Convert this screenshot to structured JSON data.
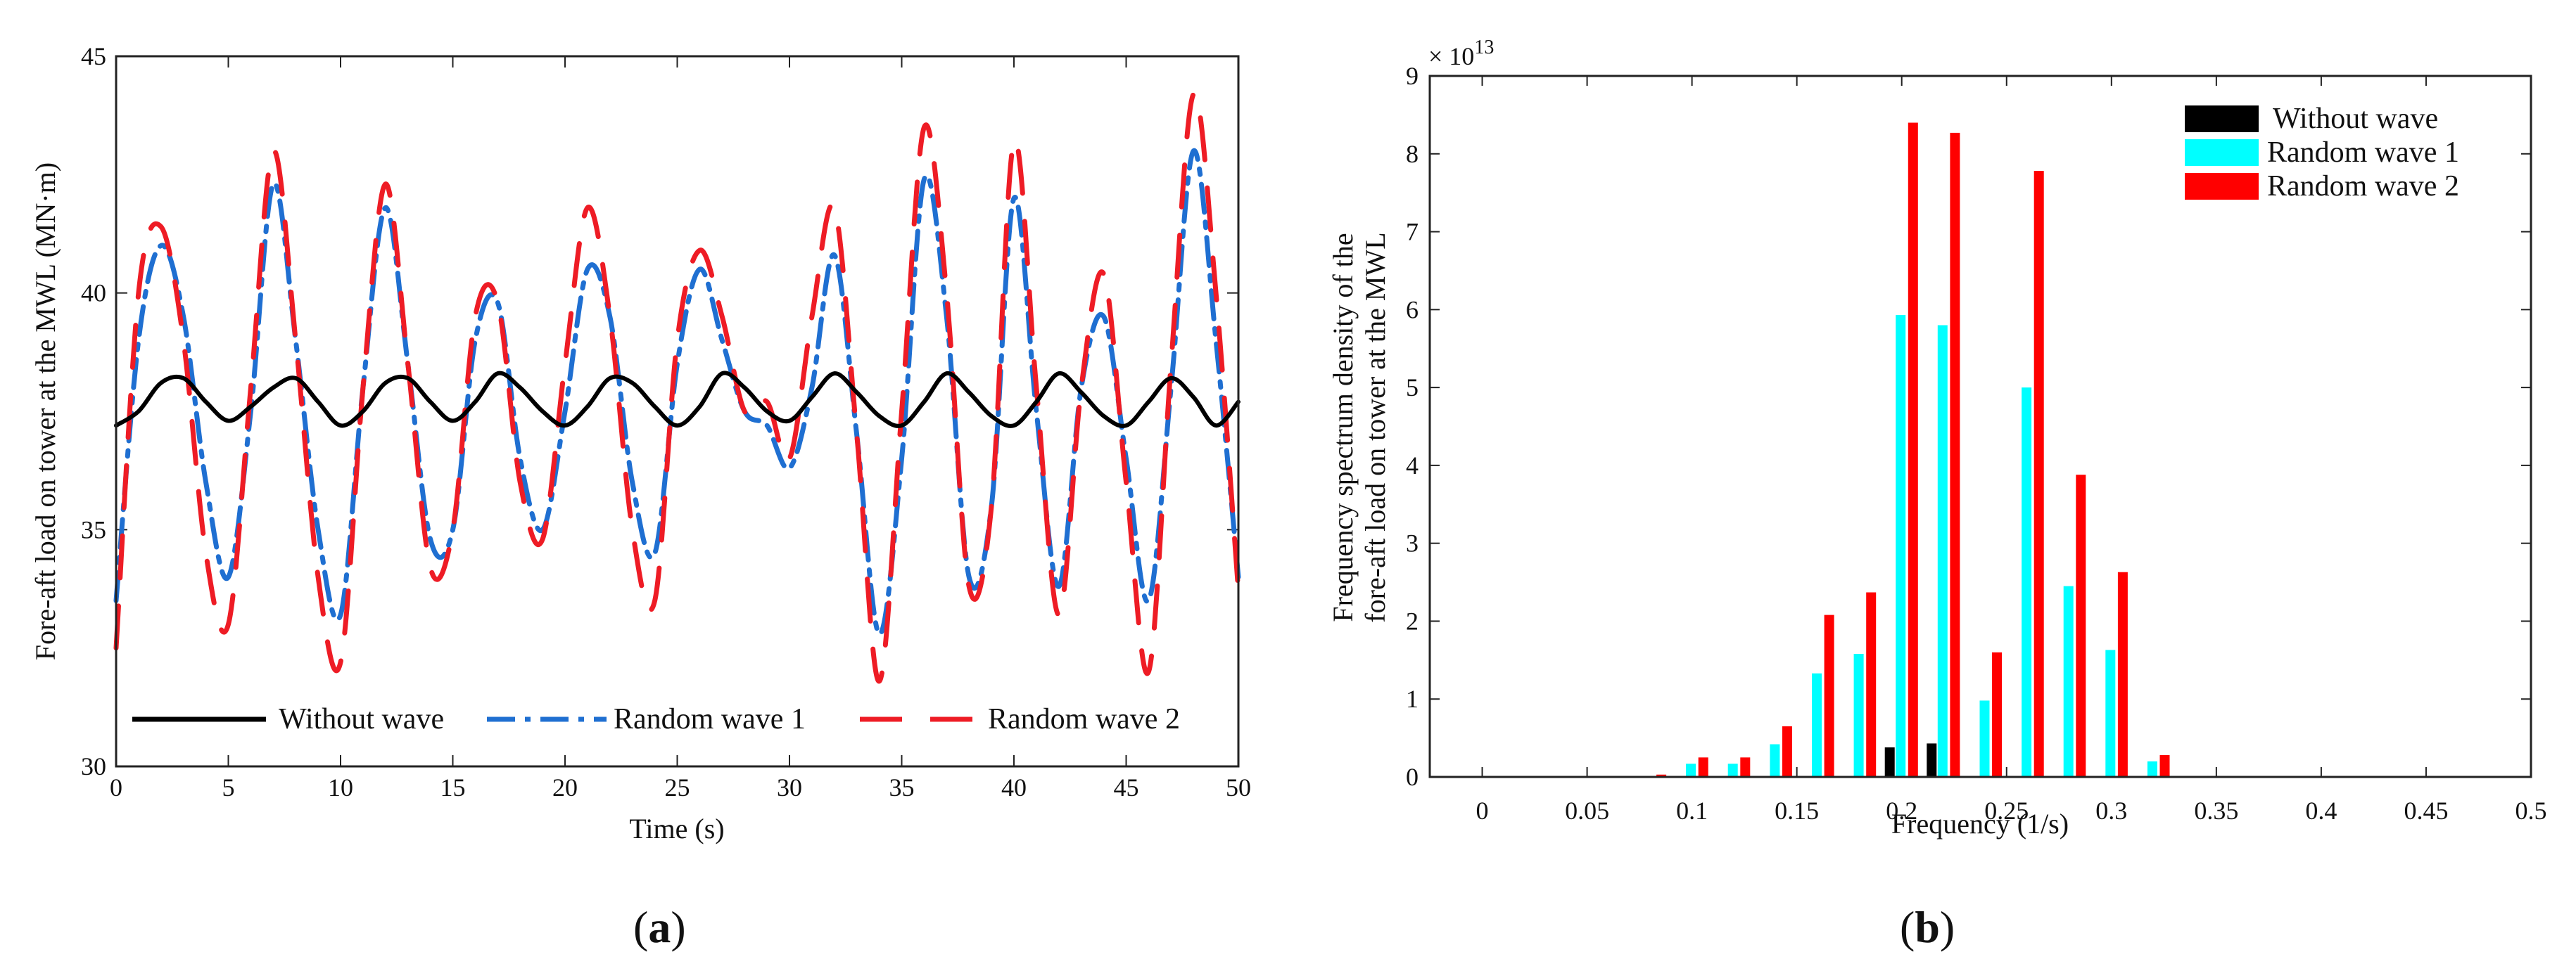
{
  "figure": {
    "panel_a_letter": "a",
    "panel_b_letter": "b"
  },
  "chart_data": [
    {
      "type": "line",
      "panel": "a",
      "title": "",
      "xlabel": "Time (s)",
      "ylabel": "Fore-aft load on tower at the MWL (MN·m)",
      "xlim": [
        0,
        50
      ],
      "ylim": [
        30,
        45
      ],
      "xticks": [
        0,
        5,
        10,
        15,
        20,
        25,
        30,
        35,
        40,
        45,
        50
      ],
      "yticks": [
        30,
        35,
        40,
        45
      ],
      "legend_position": "bottom",
      "series": [
        {
          "name": "Without wave",
          "color": "#000000",
          "style": "solid",
          "x": [
            0,
            1,
            2,
            3,
            4,
            5,
            6,
            7,
            8,
            9,
            10,
            11,
            12,
            13,
            14,
            15,
            16,
            17,
            18,
            19,
            20,
            21,
            22,
            23,
            24,
            25,
            26,
            27,
            28,
            29,
            30,
            31,
            32,
            33,
            34,
            35,
            36,
            37,
            38,
            39,
            40,
            41,
            42,
            43,
            44,
            45,
            46,
            47,
            48,
            49,
            50
          ],
          "y": [
            37.2,
            37.5,
            38.1,
            38.2,
            37.7,
            37.3,
            37.6,
            38.0,
            38.2,
            37.7,
            37.2,
            37.5,
            38.1,
            38.2,
            37.7,
            37.3,
            37.7,
            38.3,
            38.0,
            37.5,
            37.2,
            37.6,
            38.2,
            38.1,
            37.6,
            37.2,
            37.6,
            38.3,
            38.0,
            37.5,
            37.3,
            37.8,
            38.3,
            37.9,
            37.4,
            37.2,
            37.7,
            38.3,
            37.9,
            37.4,
            37.2,
            37.7,
            38.3,
            37.9,
            37.4,
            37.2,
            37.7,
            38.2,
            37.8,
            37.2,
            37.7
          ]
        },
        {
          "name": "Random wave 1",
          "color": "#1f6fd1",
          "style": "dashdot",
          "x": [
            0,
            1,
            2,
            3,
            4,
            5,
            6,
            7,
            8,
            9,
            10,
            11,
            12,
            13,
            14,
            15,
            16,
            17,
            18,
            19,
            20,
            21,
            22,
            23,
            24,
            25,
            26,
            27,
            28,
            29,
            30,
            31,
            32,
            33,
            34,
            35,
            36,
            37,
            38,
            39,
            40,
            41,
            42,
            43,
            44,
            45,
            46,
            47,
            48,
            49,
            50
          ],
          "y": [
            33.5,
            39.0,
            41.0,
            39.5,
            36.0,
            34.0,
            37.5,
            42.3,
            39.0,
            35.0,
            33.2,
            38.0,
            41.8,
            38.5,
            34.8,
            35.0,
            39.0,
            39.8,
            36.5,
            35.0,
            37.5,
            40.5,
            39.5,
            36.0,
            34.5,
            38.5,
            40.5,
            39.0,
            37.5,
            37.2,
            36.3,
            38.0,
            40.8,
            37.0,
            32.8,
            36.5,
            42.4,
            39.5,
            34.0,
            35.5,
            42.0,
            37.5,
            33.8,
            38.0,
            39.5,
            36.5,
            33.5,
            38.0,
            43.0,
            39.0,
            34.0
          ]
        },
        {
          "name": "Random wave 2",
          "color": "#ee1c25",
          "style": "dashed",
          "x": [
            0,
            1,
            2,
            3,
            4,
            5,
            6,
            7,
            8,
            9,
            10,
            11,
            12,
            13,
            14,
            15,
            16,
            17,
            18,
            19,
            20,
            21,
            22,
            23,
            24,
            25,
            26,
            27,
            28,
            29,
            30,
            31,
            32,
            33,
            34,
            35,
            36,
            37,
            38,
            39,
            40,
            41,
            42,
            43,
            44,
            45,
            46,
            47,
            48,
            49,
            50
          ],
          "y": [
            32.5,
            40.0,
            41.4,
            39.0,
            34.5,
            33.0,
            38.0,
            43.0,
            39.0,
            34.0,
            32.2,
            38.0,
            42.3,
            38.5,
            34.2,
            35.0,
            39.5,
            39.8,
            36.0,
            34.8,
            38.5,
            41.8,
            39.5,
            35.0,
            33.5,
            39.0,
            40.9,
            39.5,
            37.5,
            37.7,
            36.5,
            39.5,
            41.8,
            37.0,
            31.8,
            37.5,
            43.5,
            40.0,
            33.8,
            35.5,
            43.2,
            38.0,
            33.2,
            38.0,
            40.4,
            36.0,
            32.0,
            38.5,
            44.2,
            40.0,
            33.7
          ]
        }
      ]
    },
    {
      "type": "bar",
      "panel": "b",
      "title": "",
      "xlabel": "Frequency (1/s)",
      "ylabel_line1": "Frequency spectrum density of the",
      "ylabel_line2": "fore-aft load on tower at the MWL",
      "exponent_label": "× 10",
      "exponent_power": "13",
      "xlim": [
        -0.025,
        0.5
      ],
      "ylim": [
        0,
        9
      ],
      "xticks": [
        0,
        0.05,
        0.1,
        0.15,
        0.2,
        0.25,
        0.3,
        0.35,
        0.4,
        0.45,
        0.5
      ],
      "xtick_labels": [
        "0",
        "0.05",
        "0.1",
        "0.15",
        "0.2",
        "0.25",
        "0.3",
        "0.35",
        "0.4",
        "0.45",
        "0.5"
      ],
      "yticks": [
        0,
        1,
        2,
        3,
        4,
        5,
        6,
        7,
        8,
        9
      ],
      "legend_position": "top-right",
      "frequencies": [
        0.08,
        0.1,
        0.12,
        0.14,
        0.16,
        0.18,
        0.2,
        0.22,
        0.24,
        0.26,
        0.28,
        0.3,
        0.32
      ],
      "series": [
        {
          "name": "Without wave",
          "color": "#000000",
          "values": [
            0,
            0,
            0,
            0,
            0,
            0,
            0.38,
            0.43,
            0,
            0,
            0,
            0,
            0
          ]
        },
        {
          "name": "Random wave 1",
          "color": "#00ffff",
          "values": [
            0,
            0.17,
            0.17,
            0.42,
            1.33,
            1.58,
            5.93,
            5.8,
            0.98,
            5.0,
            2.45,
            1.63,
            0.2
          ]
        },
        {
          "name": "Random wave 2",
          "color": "#ff0000",
          "values": [
            0.03,
            0.25,
            0.25,
            0.65,
            2.08,
            2.37,
            8.4,
            8.27,
            1.6,
            7.78,
            3.88,
            2.63,
            0.28
          ]
        }
      ]
    }
  ]
}
